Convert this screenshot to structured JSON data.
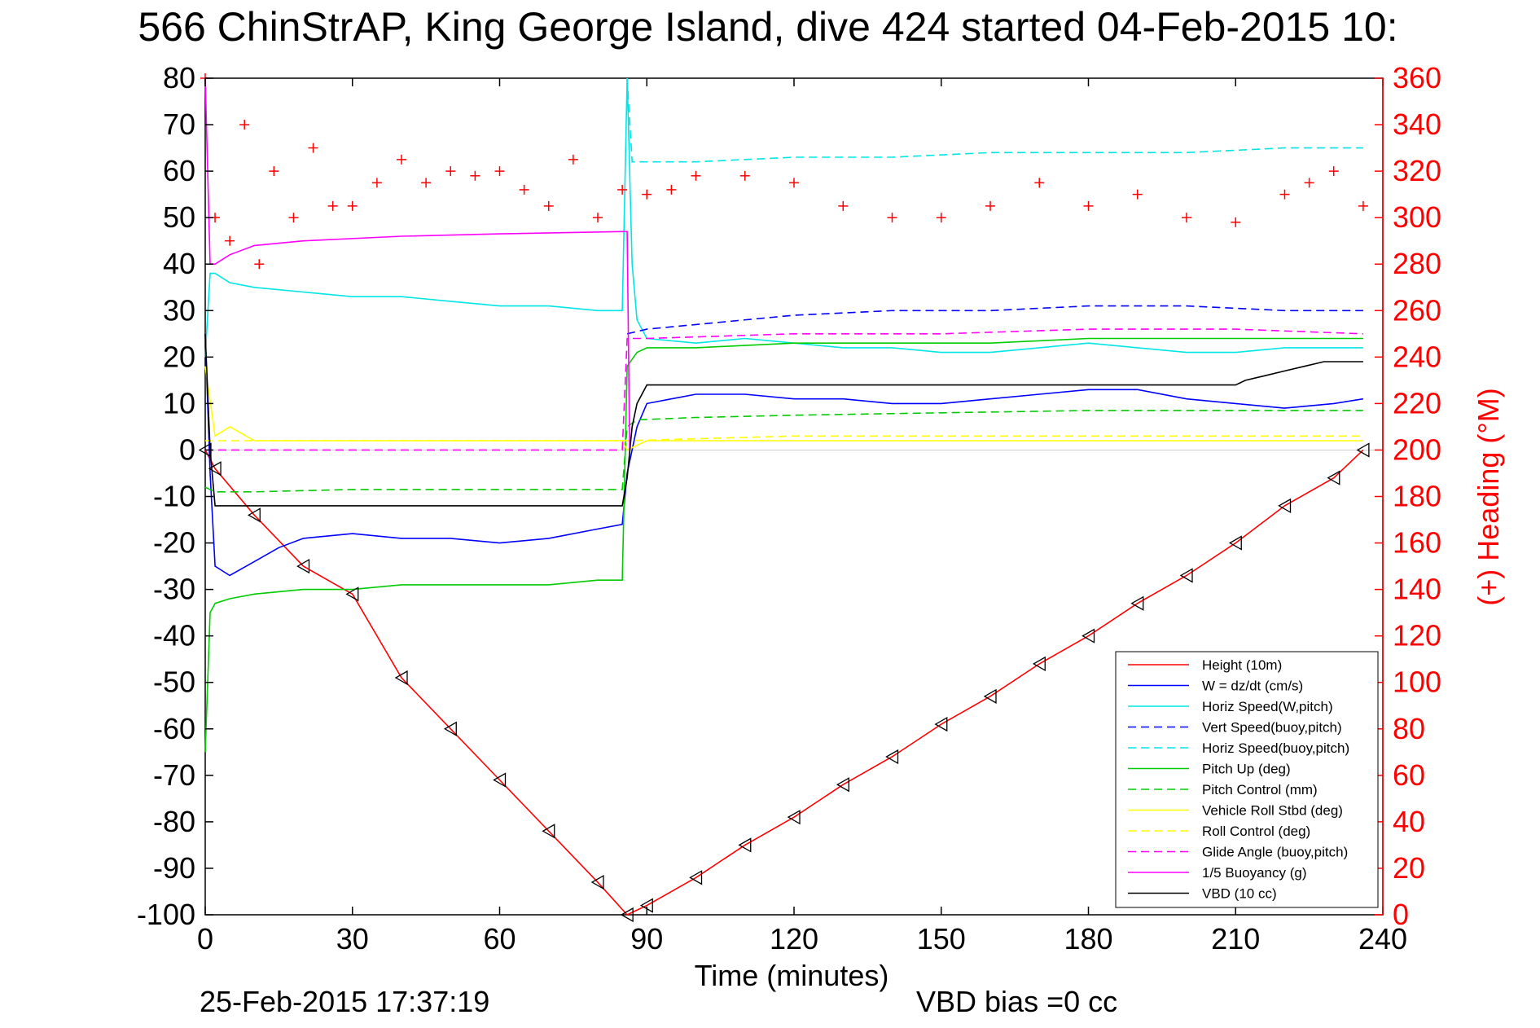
{
  "chart_data": {
    "type": "line",
    "title": "566 ChinStrAP, King George Island, dive 424 started 04-Feb-2015 10:",
    "xlabel": "Time (minutes)",
    "ylabel": "",
    "y2label": "(+) Heading (°M)",
    "xlim": [
      0,
      240
    ],
    "ylim": [
      -100,
      80
    ],
    "y2lim": [
      0,
      360
    ],
    "xticks": [
      "0",
      "30",
      "60",
      "90",
      "120",
      "150",
      "180",
      "210",
      "240"
    ],
    "yticks": [
      "80",
      "70",
      "60",
      "50",
      "40",
      "30",
      "20",
      "10",
      "0",
      "-10",
      "-20",
      "-30",
      "-40",
      "-50",
      "-60",
      "-70",
      "-80",
      "-90",
      "-100"
    ],
    "y2ticks": [
      "360",
      "340",
      "320",
      "300",
      "280",
      "260",
      "240",
      "220",
      "200",
      "180",
      "160",
      "140",
      "120",
      "100",
      "80",
      "60",
      "40",
      "20",
      "0"
    ],
    "grid": false,
    "legend_position": "bottom-right",
    "footer_date": "25-Feb-2015 17:37:19",
    "footer_note": "VBD bias =0 cc",
    "series": [
      {
        "name": "Height (10m)",
        "color": "#ff0000",
        "style": "solid",
        "x": [
          0,
          2,
          10,
          20,
          30,
          40,
          50,
          60,
          70,
          80,
          86,
          90,
          100,
          110,
          120,
          130,
          140,
          150,
          160,
          170,
          180,
          190,
          200,
          210,
          220,
          230,
          236
        ],
        "y": [
          0,
          -4,
          -14,
          -25,
          -31,
          -49,
          -60,
          -71,
          -82,
          -93,
          -100,
          -98,
          -92,
          -85,
          -79,
          -72,
          -66,
          -59,
          -53,
          -46,
          -40,
          -33,
          -27,
          -20,
          -12,
          -6,
          0
        ]
      },
      {
        "name": "W = dz/dt (cm/s)",
        "color": "#0000ff",
        "style": "solid",
        "x": [
          0,
          1,
          2,
          5,
          10,
          15,
          20,
          30,
          40,
          50,
          60,
          70,
          80,
          85,
          86,
          88,
          90,
          95,
          100,
          110,
          120,
          130,
          140,
          150,
          160,
          170,
          180,
          190,
          200,
          210,
          220,
          230,
          236
        ],
        "y": [
          25,
          -5,
          -25,
          -27,
          -24,
          -21,
          -19,
          -18,
          -19,
          -19,
          -20,
          -19,
          -17,
          -16,
          -5,
          5,
          10,
          11,
          12,
          12,
          11,
          11,
          10,
          10,
          11,
          12,
          13,
          13,
          11,
          10,
          9,
          10,
          11
        ]
      },
      {
        "name": "Horiz Speed(W,pitch)",
        "color": "#00e5e5",
        "style": "solid",
        "x": [
          0,
          1,
          2,
          5,
          10,
          20,
          30,
          40,
          50,
          60,
          70,
          80,
          85,
          86,
          87,
          88,
          90,
          100,
          110,
          120,
          130,
          140,
          150,
          160,
          170,
          180,
          190,
          200,
          210,
          220,
          230,
          236
        ],
        "y": [
          20,
          38,
          38,
          36,
          35,
          34,
          33,
          33,
          32,
          31,
          31,
          30,
          30,
          80,
          40,
          28,
          24,
          23,
          24,
          23,
          22,
          22,
          21,
          21,
          22,
          23,
          22,
          21,
          21,
          22,
          22,
          22
        ]
      },
      {
        "name": "Vert Speed(buoy,pitch)",
        "color": "#0000ff",
        "style": "dashed",
        "x": [
          86,
          90,
          100,
          120,
          140,
          160,
          180,
          200,
          220,
          236
        ],
        "y": [
          25,
          26,
          27,
          29,
          30,
          30,
          31,
          31,
          30,
          30
        ]
      },
      {
        "name": "Horiz Speed(buoy,pitch)",
        "color": "#00e5e5",
        "style": "dashed",
        "x": [
          86,
          87,
          90,
          100,
          120,
          140,
          160,
          180,
          200,
          220,
          236
        ],
        "y": [
          80,
          62,
          62,
          62,
          63,
          63,
          64,
          64,
          64,
          65,
          65
        ]
      },
      {
        "name": "Pitch Up (deg)",
        "color": "#00cc00",
        "style": "solid",
        "x": [
          0,
          1,
          2,
          5,
          10,
          20,
          30,
          40,
          50,
          60,
          70,
          80,
          85,
          86,
          88,
          90,
          100,
          120,
          140,
          160,
          180,
          200,
          220,
          236
        ],
        "y": [
          -65,
          -35,
          -33,
          -32,
          -31,
          -30,
          -30,
          -29,
          -29,
          -29,
          -29,
          -28,
          -28,
          18,
          21,
          22,
          22,
          23,
          23,
          23,
          24,
          24,
          24,
          24
        ]
      },
      {
        "name": "Pitch Control (mm)",
        "color": "#00cc00",
        "style": "dashed",
        "x": [
          0,
          2,
          10,
          30,
          60,
          85,
          86,
          88,
          100,
          120,
          150,
          180,
          210,
          236
        ],
        "y": [
          -8,
          -9,
          -9,
          -8.5,
          -8.5,
          -8.5,
          5,
          6.5,
          7,
          7.5,
          8,
          8.5,
          8.5,
          8.5
        ]
      },
      {
        "name": "Vehicle Roll Stbd (deg)",
        "color": "#ffff00",
        "style": "solid",
        "x": [
          0,
          2,
          5,
          10,
          30,
          60,
          85,
          86,
          90,
          120,
          150,
          180,
          210,
          236
        ],
        "y": [
          18,
          3,
          5,
          2,
          2,
          2,
          2,
          0,
          2,
          2,
          2,
          2,
          2,
          2
        ]
      },
      {
        "name": "Roll Control (deg)",
        "color": "#ffff00",
        "style": "dashed",
        "x": [
          0,
          30,
          60,
          86,
          120,
          160,
          200,
          236
        ],
        "y": [
          2,
          2,
          2,
          2,
          3,
          3,
          3,
          3
        ]
      },
      {
        "name": "Glide Angle (buoy,pitch)",
        "color": "#ff00ff",
        "style": "dashed",
        "x": [
          0,
          85,
          86,
          90,
          120,
          150,
          180,
          210,
          236
        ],
        "y": [
          0,
          0,
          24,
          24,
          25,
          25,
          26,
          26,
          25
        ]
      },
      {
        "name": "1/5 Buoyancy (g)",
        "color": "#ff00ff",
        "style": "solid",
        "x": [
          0,
          1,
          2,
          5,
          10,
          20,
          40,
          60,
          85,
          86,
          86.5
        ],
        "y": [
          80,
          40,
          40,
          42,
          44,
          45,
          46,
          46.5,
          47,
          47,
          0
        ]
      },
      {
        "name": "VBD (10 cc)",
        "color": "#000000",
        "style": "solid",
        "x": [
          0,
          1,
          2,
          85,
          86,
          87,
          88,
          90,
          100,
          150,
          200,
          210,
          212,
          216,
          220,
          224,
          228,
          236
        ],
        "y": [
          25,
          0,
          -12,
          -12,
          -6,
          5,
          10,
          14,
          14,
          14,
          14,
          14,
          15,
          16,
          17,
          18,
          19,
          19
        ]
      },
      {
        "name": "Heading",
        "color": "#ff0000",
        "style": "markers",
        "axis": "right",
        "x": [
          0,
          2,
          5,
          8,
          11,
          14,
          18,
          22,
          26,
          30,
          35,
          40,
          45,
          50,
          55,
          60,
          65,
          70,
          75,
          80,
          85,
          90,
          95,
          100,
          110,
          120,
          130,
          140,
          150,
          160,
          170,
          180,
          190,
          200,
          210,
          220,
          225,
          230,
          236
        ],
        "y": [
          360,
          300,
          290,
          340,
          280,
          320,
          300,
          330,
          305,
          305,
          315,
          325,
          315,
          320,
          318,
          320,
          312,
          305,
          325,
          300,
          312,
          310,
          312,
          318,
          318,
          315,
          305,
          300,
          300,
          305,
          315,
          305,
          310,
          300,
          298,
          310,
          315,
          320,
          305
        ]
      }
    ]
  }
}
